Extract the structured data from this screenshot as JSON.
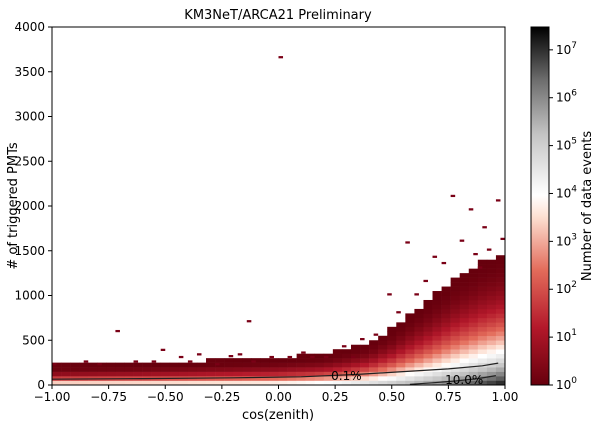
{
  "chart_data": {
    "type": "heatmap",
    "title": "KM3NeT/ARCA21 Preliminary",
    "xlabel": "cos(zenith)",
    "ylabel": "# of triggered PMTs",
    "xlim": [
      -1.0,
      1.0
    ],
    "ylim": [
      0,
      4000
    ],
    "x_ticks": [
      -1.0,
      -0.75,
      -0.5,
      -0.25,
      0.0,
      0.25,
      0.5,
      0.75,
      1.0
    ],
    "x_tick_labels": [
      "−1.00",
      "−0.75",
      "−0.50",
      "−0.25",
      "0.00",
      "0.25",
      "0.50",
      "0.75",
      "1.00"
    ],
    "y_ticks": [
      0,
      500,
      1000,
      1500,
      2000,
      2500,
      3000,
      3500,
      4000
    ],
    "y_tick_labels": [
      "0",
      "500",
      "1000",
      "1500",
      "2000",
      "2500",
      "3000",
      "3500",
      "4000"
    ],
    "bin_width_x": 0.04,
    "bin_height_y": 50,
    "colorbar": {
      "label": "Number of data events",
      "scale": "log",
      "range": [
        1,
        30000000
      ],
      "tick_labels": [
        "10",
        "10",
        "10",
        "10",
        "10",
        "10",
        "10",
        "10"
      ],
      "tick_exponents": [
        "0",
        "1",
        "2",
        "3",
        "4",
        "5",
        "6",
        "7"
      ],
      "colors": {
        "low": "#67000d",
        "mid_low": "#d6464d",
        "mid": "#fde0d2",
        "white": "#ffffff",
        "mid_high": "#969696",
        "high": "#000000"
      }
    },
    "contours": [
      {
        "label": "0.1%",
        "label_x": 0.3,
        "label_y": 100,
        "x": [
          -1.0,
          -0.6,
          -0.2,
          0.1,
          0.35,
          0.55,
          0.75,
          0.9,
          0.97
        ],
        "y": [
          65,
          72,
          80,
          92,
          118,
          150,
          180,
          215,
          245
        ]
      },
      {
        "label": "10.0%",
        "label_x": 0.82,
        "label_y": 55,
        "x": [
          0.58,
          0.68,
          0.78,
          0.88,
          0.96
        ],
        "y": [
          8,
          25,
          45,
          72,
          105
        ]
      }
    ],
    "upper_envelope": {
      "x": [
        -1.0,
        -0.8,
        -0.6,
        -0.4,
        -0.2,
        0.0,
        0.2,
        0.3,
        0.4,
        0.5,
        0.6,
        0.7,
        0.8,
        0.9,
        1.0
      ],
      "y": [
        200,
        210,
        220,
        240,
        260,
        280,
        320,
        380,
        450,
        600,
        800,
        1000,
        1200,
        1350,
        1450
      ]
    },
    "isolated_bins": [
      {
        "x": -0.99,
        "y": 220
      },
      {
        "x": -0.85,
        "y": 250
      },
      {
        "x": -0.79,
        "y": 220
      },
      {
        "x": -0.71,
        "y": 590
      },
      {
        "x": -0.63,
        "y": 250
      },
      {
        "x": -0.55,
        "y": 250
      },
      {
        "x": -0.51,
        "y": 380
      },
      {
        "x": -0.43,
        "y": 300
      },
      {
        "x": -0.39,
        "y": 250
      },
      {
        "x": -0.35,
        "y": 330
      },
      {
        "x": -0.27,
        "y": 220
      },
      {
        "x": -0.21,
        "y": 310
      },
      {
        "x": -0.17,
        "y": 330
      },
      {
        "x": -0.13,
        "y": 700
      },
      {
        "x": -0.11,
        "y": 250
      },
      {
        "x": -0.03,
        "y": 300
      },
      {
        "x": 0.01,
        "y": 3650
      },
      {
        "x": 0.05,
        "y": 300
      },
      {
        "x": 0.11,
        "y": 350
      },
      {
        "x": 0.15,
        "y": 300
      },
      {
        "x": 0.21,
        "y": 300
      },
      {
        "x": 0.29,
        "y": 420
      },
      {
        "x": 0.33,
        "y": 300
      },
      {
        "x": 0.37,
        "y": 500
      },
      {
        "x": 0.43,
        "y": 550
      },
      {
        "x": 0.49,
        "y": 1000
      },
      {
        "x": 0.53,
        "y": 800
      },
      {
        "x": 0.57,
        "y": 1580
      },
      {
        "x": 0.61,
        "y": 1000
      },
      {
        "x": 0.65,
        "y": 1150
      },
      {
        "x": 0.69,
        "y": 1420
      },
      {
        "x": 0.73,
        "y": 1350
      },
      {
        "x": 0.77,
        "y": 2100
      },
      {
        "x": 0.81,
        "y": 1600
      },
      {
        "x": 0.85,
        "y": 1950
      },
      {
        "x": 0.87,
        "y": 1450
      },
      {
        "x": 0.89,
        "y": 1300
      },
      {
        "x": 0.91,
        "y": 1750
      },
      {
        "x": 0.93,
        "y": 1500
      },
      {
        "x": 0.97,
        "y": 2050
      },
      {
        "x": 0.99,
        "y": 1620
      }
    ]
  }
}
